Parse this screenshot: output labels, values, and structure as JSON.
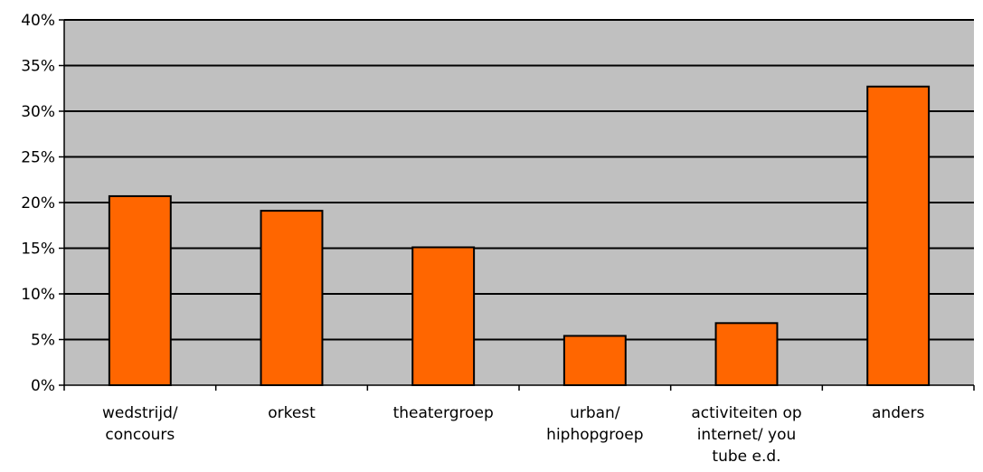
{
  "chart_data": {
    "type": "bar",
    "title": "",
    "xlabel": "",
    "ylabel": "",
    "categories": [
      [
        "wedstrijd/",
        "concours"
      ],
      [
        "orkest"
      ],
      [
        "theatergroep"
      ],
      [
        "urban/",
        "hiphopgroep"
      ],
      [
        "activiteiten op",
        "internet/ you",
        "tube e.d."
      ],
      [
        "anders"
      ]
    ],
    "values": [
      20.7,
      19.1,
      15.1,
      5.4,
      6.8,
      32.7
    ],
    "ylim": [
      0,
      40
    ],
    "yticks": [
      0,
      5,
      10,
      15,
      20,
      25,
      30,
      35,
      40
    ],
    "ytick_labels": [
      "0%",
      "5%",
      "10%",
      "15%",
      "20%",
      "25%",
      "30%",
      "35%",
      "40%"
    ],
    "grid": true,
    "colors": {
      "bar": "#ff6600",
      "plot_background": "#c0c0c0",
      "outline": "#000000"
    }
  }
}
